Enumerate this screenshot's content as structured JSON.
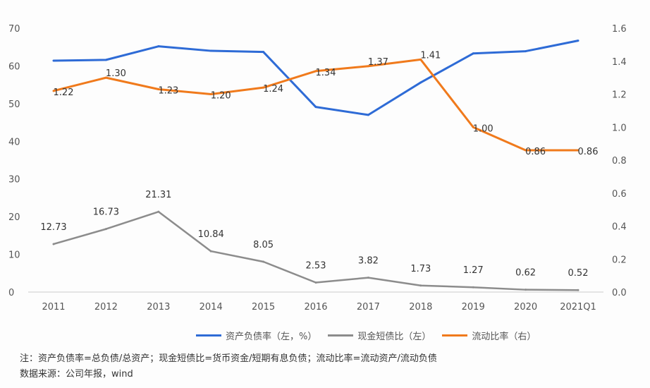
{
  "chart_data": {
    "type": "line",
    "categories": [
      "2011",
      "2012",
      "2013",
      "2014",
      "2015",
      "2016",
      "2017",
      "2018",
      "2019",
      "2020",
      "2021Q1"
    ],
    "y_left": {
      "range": [
        0,
        70
      ],
      "ticks": [
        "0",
        "10",
        "20",
        "30",
        "40",
        "50",
        "60",
        "70"
      ]
    },
    "y_right": {
      "range": [
        0,
        1.6
      ],
      "ticks": [
        "0.0",
        "0.2",
        "0.4",
        "0.6",
        "0.8",
        "1.0",
        "1.2",
        "1.4",
        "1.6"
      ]
    },
    "grid": false,
    "legend_position": "bottom",
    "series": [
      {
        "name": "资产负债率（左，%）",
        "axis": "left",
        "color": "#2e6bd6",
        "values": [
          61.4,
          61.6,
          65.2,
          64.0,
          63.7,
          49.1,
          47.0,
          55.6,
          63.3,
          63.9,
          66.7
        ],
        "labels": []
      },
      {
        "name": "现金短债比（左）",
        "axis": "left",
        "color": "#8c8c8c",
        "values": [
          12.73,
          16.73,
          21.31,
          10.84,
          8.05,
          2.53,
          3.82,
          1.73,
          1.27,
          0.62,
          0.52
        ],
        "labels": [
          "12.73",
          "16.73",
          "21.31",
          "10.84",
          "8.05",
          "2.53",
          "3.82",
          "1.73",
          "1.27",
          "0.62",
          "0.52"
        ]
      },
      {
        "name": "流动比率（右）",
        "axis": "right",
        "color": "#f07a1c",
        "values": [
          1.22,
          1.3,
          1.23,
          1.2,
          1.24,
          1.34,
          1.37,
          1.41,
          1.0,
          0.86,
          0.86
        ],
        "labels": [
          "1.22",
          "1.30",
          "1.23",
          "1.20",
          "1.24",
          "1.34",
          "1.37",
          "1.41",
          "1.00",
          "0.86",
          "0.86"
        ]
      }
    ],
    "highlight_color": "#e8372c"
  },
  "notes": {
    "line1": "注：资产负债率=总负债/总资产；现金短债比=货币资金/短期有息负债；流动比率=流动资产/流动负债",
    "line2": "数据来源：公司年报，wind"
  }
}
